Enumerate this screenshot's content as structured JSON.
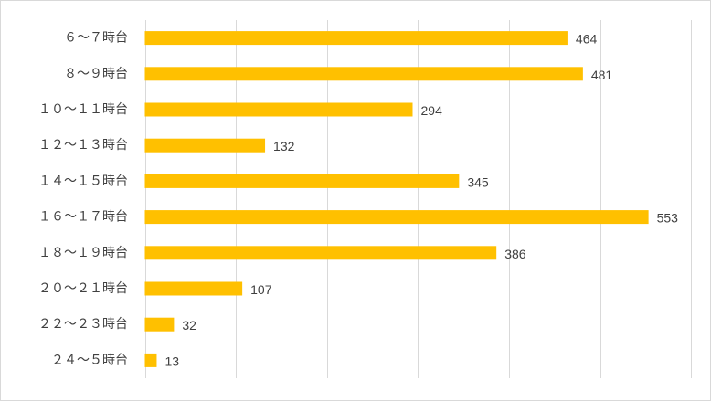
{
  "chart_data": {
    "type": "bar",
    "orientation": "horizontal",
    "categories": [
      "６～７時台",
      "８～９時台",
      "１０～１１時台",
      "１２～１３時台",
      "１４～１５時台",
      "１６～１７時台",
      "１８～１９時台",
      "２０～２１時台",
      "２２～２３時台",
      "２４～５時台"
    ],
    "values": [
      464,
      481,
      294,
      132,
      345,
      553,
      386,
      107,
      32,
      13
    ],
    "title": "",
    "xlabel": "",
    "ylabel": "",
    "xlim": [
      0,
      600
    ],
    "grid": true,
    "grid_step": 100,
    "data_labels": true,
    "legend": "none",
    "bar_color": "#FFC000"
  }
}
